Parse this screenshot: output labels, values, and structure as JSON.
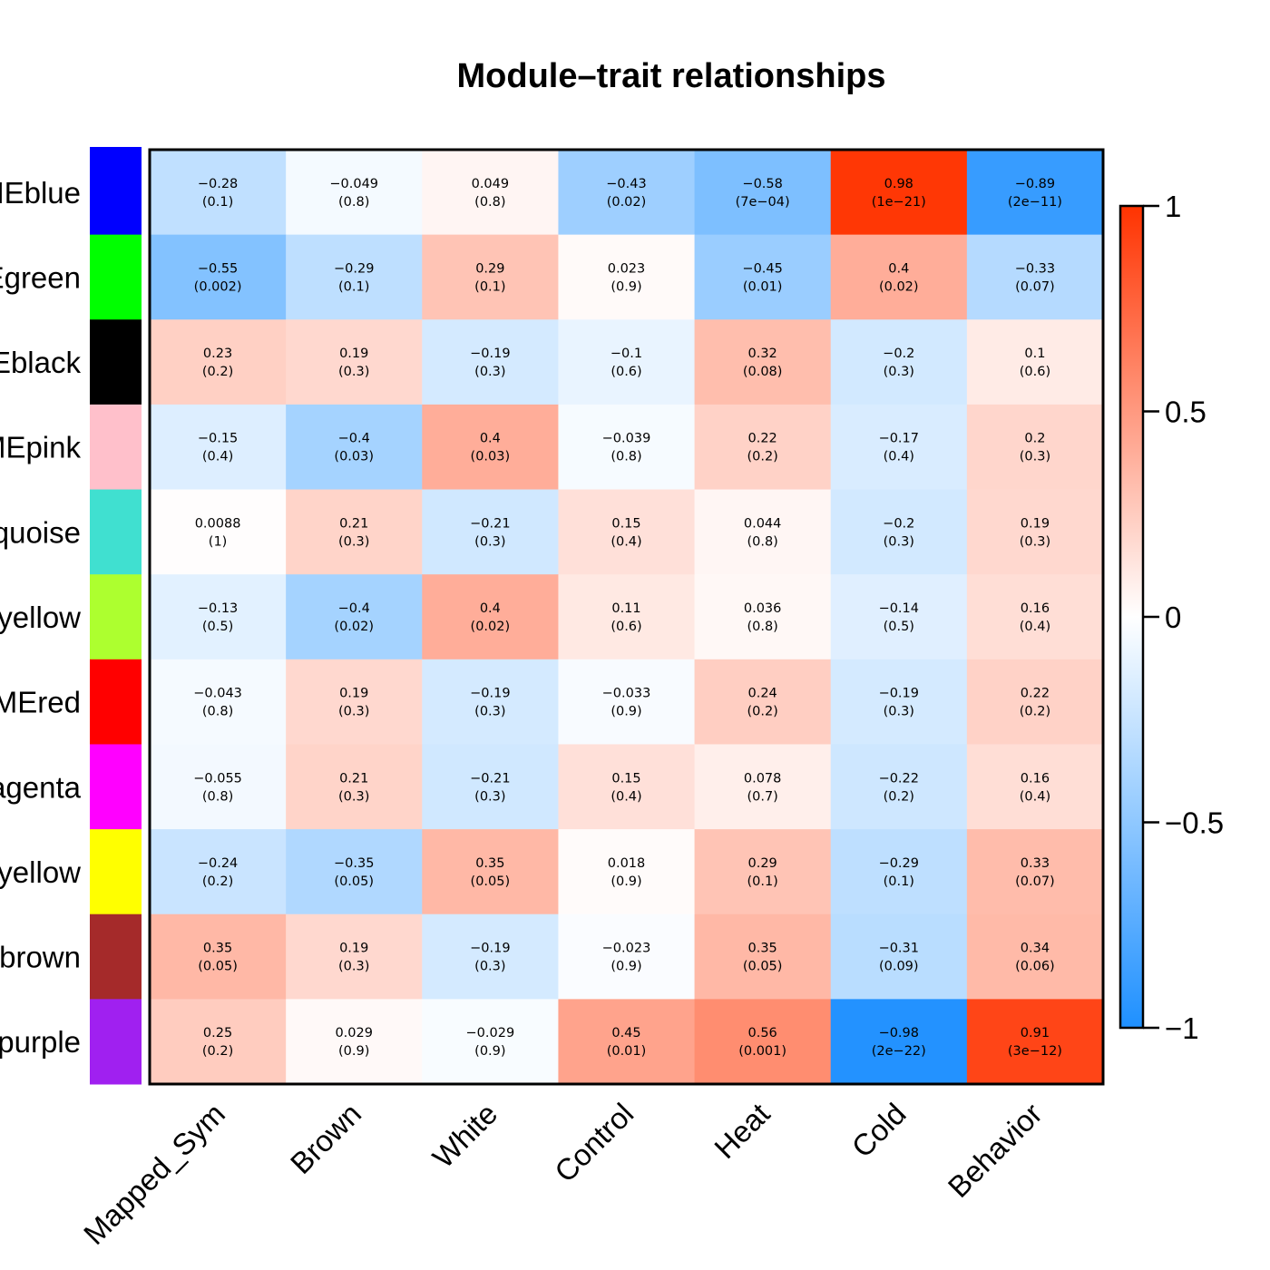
{
  "chart_data": {
    "type": "heatmap",
    "title": "Module–trait relationships",
    "rows": [
      "MEblue",
      "MEgreen",
      "MEblack",
      "MEpink",
      "MEturquoise",
      "MEgreenyellow",
      "MEred",
      "MEmagenta",
      "MEyellow",
      "MEbrown",
      "MEpurple"
    ],
    "row_labels_visible": [
      "MEblue",
      "Egreen",
      "Eblack",
      "MEpink",
      "quoise",
      "yellow",
      "MEred",
      "agenta",
      "yellow",
      "brown",
      "purple"
    ],
    "row_colors": [
      "#0000FF",
      "#00FF00",
      "#000000",
      "#FFC0CB",
      "#40E0D0",
      "#ADFF2F",
      "#FF0000",
      "#FF00FF",
      "#FFFF00",
      "#A52A2A",
      "#A020F0"
    ],
    "columns": [
      "Mapped_Sym",
      "Brown",
      "White",
      "Control",
      "Heat",
      "Cold",
      "Behavior"
    ],
    "values": [
      [
        -0.28,
        -0.049,
        0.049,
        -0.43,
        -0.58,
        0.98,
        -0.89
      ],
      [
        -0.55,
        -0.29,
        0.29,
        0.023,
        -0.45,
        0.4,
        -0.33
      ],
      [
        0.23,
        0.19,
        -0.19,
        -0.1,
        0.32,
        -0.2,
        0.1
      ],
      [
        -0.15,
        -0.4,
        0.4,
        -0.039,
        0.22,
        -0.17,
        0.2
      ],
      [
        0.0088,
        0.21,
        -0.21,
        0.15,
        0.044,
        -0.2,
        0.19
      ],
      [
        -0.13,
        -0.4,
        0.4,
        0.11,
        0.036,
        -0.14,
        0.16
      ],
      [
        -0.043,
        0.19,
        -0.19,
        -0.033,
        0.24,
        -0.19,
        0.22
      ],
      [
        -0.055,
        0.21,
        -0.21,
        0.15,
        0.078,
        -0.22,
        0.16
      ],
      [
        -0.24,
        -0.35,
        0.35,
        0.018,
        0.29,
        -0.29,
        0.33
      ],
      [
        0.35,
        0.19,
        -0.19,
        -0.023,
        0.35,
        -0.31,
        0.34
      ],
      [
        0.25,
        0.029,
        -0.029,
        0.45,
        0.56,
        -0.98,
        0.91
      ]
    ],
    "value_labels": [
      [
        "−0.28",
        "−0.049",
        "0.049",
        "−0.43",
        "−0.58",
        "0.98",
        "−0.89"
      ],
      [
        "−0.55",
        "−0.29",
        "0.29",
        "0.023",
        "−0.45",
        "0.4",
        "−0.33"
      ],
      [
        "0.23",
        "0.19",
        "−0.19",
        "−0.1",
        "0.32",
        "−0.2",
        "0.1"
      ],
      [
        "−0.15",
        "−0.4",
        "0.4",
        "−0.039",
        "0.22",
        "−0.17",
        "0.2"
      ],
      [
        "0.0088",
        "0.21",
        "−0.21",
        "0.15",
        "0.044",
        "−0.2",
        "0.19"
      ],
      [
        "−0.13",
        "−0.4",
        "0.4",
        "0.11",
        "0.036",
        "−0.14",
        "0.16"
      ],
      [
        "−0.043",
        "0.19",
        "−0.19",
        "−0.033",
        "0.24",
        "−0.19",
        "0.22"
      ],
      [
        "−0.055",
        "0.21",
        "−0.21",
        "0.15",
        "0.078",
        "−0.22",
        "0.16"
      ],
      [
        "−0.24",
        "−0.35",
        "0.35",
        "0.018",
        "0.29",
        "−0.29",
        "0.33"
      ],
      [
        "0.35",
        "0.19",
        "−0.19",
        "−0.023",
        "0.35",
        "−0.31",
        "0.34"
      ],
      [
        "0.25",
        "0.029",
        "−0.029",
        "0.45",
        "0.56",
        "−0.98",
        "0.91"
      ]
    ],
    "pvalues": [
      [
        "(0.1)",
        "(0.8)",
        "(0.8)",
        "(0.02)",
        "(7e−04)",
        "(1e−21)",
        "(2e−11)"
      ],
      [
        "(0.002)",
        "(0.1)",
        "(0.1)",
        "(0.9)",
        "(0.01)",
        "(0.02)",
        "(0.07)"
      ],
      [
        "(0.2)",
        "(0.3)",
        "(0.3)",
        "(0.6)",
        "(0.08)",
        "(0.3)",
        "(0.6)"
      ],
      [
        "(0.4)",
        "(0.03)",
        "(0.03)",
        "(0.8)",
        "(0.2)",
        "(0.4)",
        "(0.3)"
      ],
      [
        "(1)",
        "(0.3)",
        "(0.3)",
        "(0.4)",
        "(0.8)",
        "(0.3)",
        "(0.3)"
      ],
      [
        "(0.5)",
        "(0.02)",
        "(0.02)",
        "(0.6)",
        "(0.8)",
        "(0.5)",
        "(0.4)"
      ],
      [
        "(0.8)",
        "(0.3)",
        "(0.3)",
        "(0.9)",
        "(0.2)",
        "(0.3)",
        "(0.2)"
      ],
      [
        "(0.8)",
        "(0.3)",
        "(0.3)",
        "(0.4)",
        "(0.7)",
        "(0.2)",
        "(0.4)"
      ],
      [
        "(0.2)",
        "(0.05)",
        "(0.05)",
        "(0.9)",
        "(0.1)",
        "(0.1)",
        "(0.07)"
      ],
      [
        "(0.05)",
        "(0.3)",
        "(0.3)",
        "(0.9)",
        "(0.05)",
        "(0.09)",
        "(0.06)"
      ],
      [
        "(0.2)",
        "(0.9)",
        "(0.9)",
        "(0.01)",
        "(0.001)",
        "(2e−22)",
        "(3e−12)"
      ]
    ],
    "colorscale": {
      "min": -1,
      "max": 1,
      "low": "#1E90FF",
      "mid": "#FFFFFF",
      "high": "#FF3300"
    },
    "colorbar_ticks": [
      1,
      0.5,
      0,
      -0.5,
      -1
    ],
    "colorbar_tick_labels": [
      "1",
      "0.5",
      "0",
      "−0.5",
      "−1"
    ],
    "legend": "right"
  }
}
